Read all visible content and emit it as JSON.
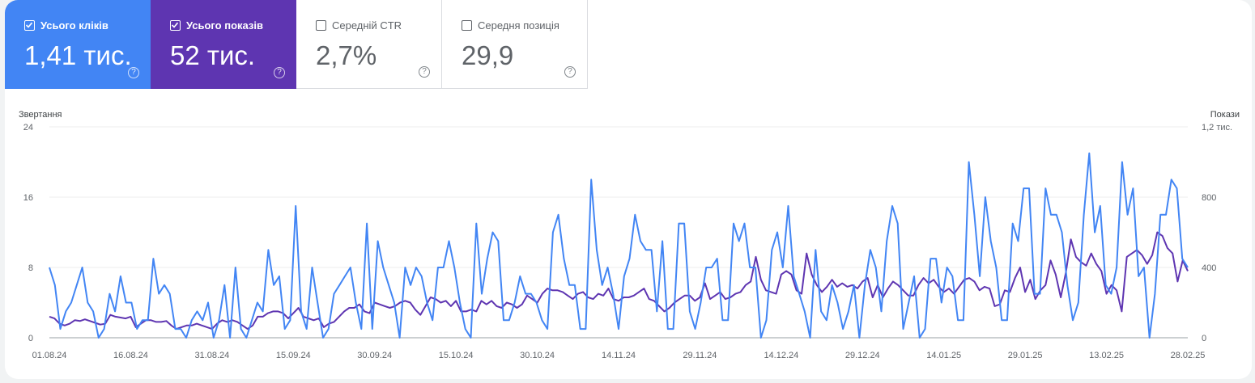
{
  "metrics": [
    {
      "label": "Усього кліків",
      "value": "1,41 тис.",
      "checked": true,
      "color": "#4285f4"
    },
    {
      "label": "Усього показів",
      "value": "52 тис.",
      "checked": true,
      "color": "#5e35b1"
    },
    {
      "label": "Середній CTR",
      "value": "2,7%",
      "checked": false
    },
    {
      "label": "Середня позиція",
      "value": "29,9",
      "checked": false
    }
  ],
  "help_icon": "?",
  "chart_data": {
    "type": "line",
    "left_axis_title": "Звертання",
    "right_axis_title": "Покази",
    "left_ticks": [
      "0",
      "8",
      "16",
      "24"
    ],
    "right_ticks": [
      "0",
      "400",
      "800",
      "1,2 тис."
    ],
    "ylim_left": [
      0,
      24
    ],
    "ylim_right": [
      0,
      1200
    ],
    "x_tick_labels": [
      "01.08.24",
      "16.08.24",
      "31.08.24",
      "15.09.24",
      "30.09.24",
      "15.10.24",
      "30.10.24",
      "14.11.24",
      "29.11.24",
      "14.12.24",
      "29.12.24",
      "14.01.25",
      "29.01.25",
      "13.02.25",
      "28.02.25"
    ],
    "grid": true,
    "series": [
      {
        "name": "Усього кліків",
        "axis": "left",
        "color": "#4285f4",
        "values": [
          8,
          6,
          1,
          3,
          4,
          6,
          8,
          4,
          3,
          0,
          1,
          5,
          3,
          7,
          4,
          4,
          1,
          2,
          2,
          9,
          5,
          6,
          5,
          1,
          1,
          0,
          2,
          3,
          2,
          4,
          0,
          2,
          6,
          0,
          8,
          1,
          0,
          2,
          4,
          3,
          10,
          6,
          7,
          1,
          2,
          15,
          3,
          1,
          8,
          4,
          0,
          1,
          5,
          6,
          7,
          8,
          4,
          1,
          13,
          1,
          11,
          8,
          6,
          4,
          0,
          8,
          6,
          8,
          7,
          4,
          2,
          8,
          8,
          11,
          8,
          4,
          1,
          0,
          13,
          5,
          9,
          12,
          11,
          2,
          2,
          4,
          7,
          5,
          5,
          4,
          2,
          1,
          12,
          14,
          9,
          6,
          6,
          1,
          1,
          18,
          10,
          6,
          8,
          5,
          1,
          7,
          9,
          14,
          11,
          10,
          10,
          3,
          11,
          1,
          1,
          13,
          13,
          3,
          1,
          4,
          8,
          8,
          9,
          2,
          2,
          13,
          11,
          13,
          8,
          8,
          0,
          2,
          10,
          12,
          8,
          15,
          7,
          5,
          3,
          0,
          10,
          3,
          2,
          6,
          4,
          1,
          3,
          6,
          0,
          6,
          10,
          8,
          3,
          11,
          15,
          13,
          1,
          4,
          7,
          0,
          1,
          9,
          9,
          4,
          8,
          7,
          2,
          2,
          20,
          14,
          7,
          16,
          11,
          8,
          2,
          2,
          13,
          11,
          17,
          17,
          5,
          5,
          17,
          14,
          14,
          12,
          6,
          2,
          4,
          14,
          21,
          12,
          15,
          6,
          5,
          8,
          20,
          14,
          17,
          7,
          8,
          0,
          5,
          14,
          14,
          18,
          17,
          9,
          8
        ]
      },
      {
        "name": "Усього показів",
        "axis": "right",
        "color": "#5e35b1",
        "values": [
          120,
          110,
          80,
          70,
          80,
          100,
          95,
          105,
          95,
          85,
          75,
          80,
          130,
          120,
          115,
          110,
          120,
          60,
          80,
          100,
          100,
          90,
          90,
          95,
          70,
          50,
          60,
          70,
          70,
          80,
          70,
          60,
          50,
          80,
          100,
          90,
          100,
          90,
          70,
          50,
          70,
          120,
          120,
          140,
          150,
          150,
          140,
          110,
          140,
          170,
          120,
          110,
          100,
          110,
          60,
          80,
          90,
          120,
          150,
          170,
          170,
          190,
          150,
          140,
          200,
          190,
          180,
          170,
          180,
          200,
          210,
          200,
          160,
          130,
          180,
          230,
          220,
          200,
          210,
          180,
          210,
          150,
          150,
          160,
          150,
          210,
          190,
          210,
          180,
          170,
          200,
          190,
          170,
          190,
          240,
          220,
          200,
          250,
          280,
          270,
          270,
          260,
          240,
          220,
          250,
          260,
          230,
          220,
          250,
          240,
          280,
          220,
          210,
          230,
          230,
          240,
          260,
          280,
          220,
          210,
          180,
          150,
          170,
          200,
          220,
          240,
          240,
          210,
          230,
          310,
          220,
          240,
          260,
          220,
          230,
          250,
          260,
          300,
          320,
          460,
          330,
          270,
          260,
          250,
          360,
          380,
          360,
          270,
          250,
          480,
          360,
          300,
          260,
          290,
          330,
          290,
          310,
          290,
          300,
          280,
          320,
          340,
          230,
          300,
          230,
          280,
          320,
          300,
          270,
          240,
          240,
          300,
          340,
          310,
          330,
          290,
          260,
          280,
          250,
          290,
          330,
          340,
          320,
          270,
          290,
          280,
          180,
          190,
          270,
          260,
          340,
          400,
          260,
          330,
          220,
          270,
          300,
          440,
          360,
          230,
          370,
          560,
          460,
          430,
          410,
          480,
          420,
          380,
          250,
          300,
          270,
          150,
          460,
          480,
          500,
          470,
          420,
          470,
          600,
          580,
          510,
          480,
          320,
          440,
          380
        ]
      }
    ]
  }
}
